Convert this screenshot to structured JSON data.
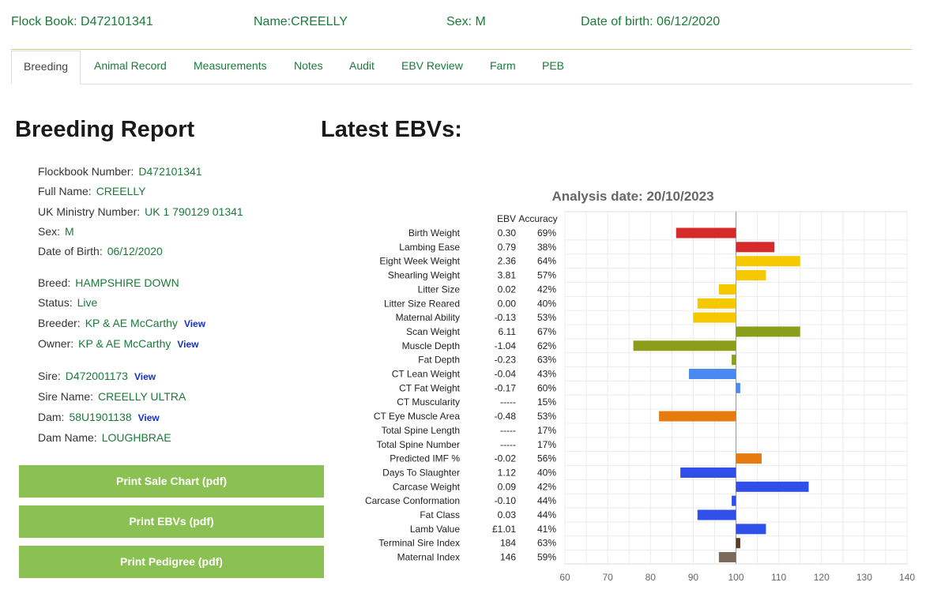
{
  "header": {
    "flock_book": "Flock Book: D472101341",
    "name": "Name:CREELLY",
    "sex": "Sex: M",
    "dob": "Date of birth: 06/12/2020"
  },
  "tabs": [
    {
      "label": "Breeding",
      "active": true
    },
    {
      "label": "Animal Record"
    },
    {
      "label": "Measurements"
    },
    {
      "label": "Notes"
    },
    {
      "label": "Audit"
    },
    {
      "label": "EBV Review"
    },
    {
      "label": "Farm"
    },
    {
      "label": "PEB"
    }
  ],
  "report": {
    "title": "Breeding Report",
    "flockbook_label": "Flockbook Number:",
    "flockbook": "D472101341",
    "fullname_label": "Full Name:",
    "fullname": "CREELLY",
    "ministry_label": "UK Ministry Number:",
    "ministry": "UK 1 790129 01341",
    "sex_label": "Sex:",
    "sex": "M",
    "dob_label": "Date of Birth:",
    "dob": "06/12/2020",
    "breed_label": "Breed:",
    "breed": "HAMPSHIRE DOWN",
    "status_label": "Status:",
    "status": "Live",
    "breeder_label": "Breeder:",
    "breeder": "KP & AE McCarthy",
    "owner_label": "Owner:",
    "owner": "KP & AE McCarthy",
    "sire_label": "Sire:",
    "sire": "D472001173",
    "sirename_label": "Sire Name:",
    "sirename": "CREELLY ULTRA",
    "dam_label": "Dam:",
    "dam": "58U1901138",
    "damname_label": "Dam Name:",
    "damname": "LOUGHBRAE",
    "view_label": "View"
  },
  "buttons": {
    "sale_chart": "Print Sale Chart (pdf)",
    "ebvs": "Print EBVs (pdf)",
    "pedigree": "Print Pedigree (pdf)"
  },
  "ebv_heading": "Latest EBVs:",
  "chart_data": {
    "type": "bar",
    "orientation": "horizontal",
    "title": "Analysis date: 20/10/2023",
    "column_headers": [
      "EBV",
      "Accuracy"
    ],
    "xlim": [
      60,
      140
    ],
    "xticks": [
      60,
      70,
      80,
      90,
      100,
      110,
      120,
      130,
      140
    ],
    "baseline": 100,
    "grid": true,
    "rows": [
      {
        "trait": "Birth Weight",
        "ebv": "0.30",
        "accuracy": "69%",
        "index": 86,
        "color": "#d42a2a"
      },
      {
        "trait": "Lambing Ease",
        "ebv": "0.79",
        "accuracy": "38%",
        "index": 109,
        "color": "#d42a2a"
      },
      {
        "trait": "Eight Week Weight",
        "ebv": "2.36",
        "accuracy": "64%",
        "index": 115,
        "color": "#f5c800"
      },
      {
        "trait": "Shearling Weight",
        "ebv": "3.81",
        "accuracy": "57%",
        "index": 107,
        "color": "#f5c800"
      },
      {
        "trait": "Litter Size",
        "ebv": "0.02",
        "accuracy": "42%",
        "index": 96,
        "color": "#f5c800"
      },
      {
        "trait": "Litter Size Reared",
        "ebv": "0.00",
        "accuracy": "40%",
        "index": 91,
        "color": "#f5c800"
      },
      {
        "trait": "Maternal Ability",
        "ebv": "-0.13",
        "accuracy": "53%",
        "index": 90,
        "color": "#f5c800"
      },
      {
        "trait": "Scan Weight",
        "ebv": "6.11",
        "accuracy": "67%",
        "index": 115,
        "color": "#8a9e1a"
      },
      {
        "trait": "Muscle Depth",
        "ebv": "-1.04",
        "accuracy": "62%",
        "index": 76,
        "color": "#8a9e1a"
      },
      {
        "trait": "Fat Depth",
        "ebv": "-0.23",
        "accuracy": "63%",
        "index": 99,
        "color": "#8a9e1a"
      },
      {
        "trait": "CT Lean Weight",
        "ebv": "-0.04",
        "accuracy": "43%",
        "index": 89,
        "color": "#4a8af0"
      },
      {
        "trait": "CT Fat Weight",
        "ebv": "-0.17",
        "accuracy": "60%",
        "index": 101,
        "color": "#4a8af0"
      },
      {
        "trait": "CT Muscularity",
        "ebv": "-----",
        "accuracy": "15%",
        "index": null,
        "color": "#4a8af0"
      },
      {
        "trait": "CT Eye Muscle Area",
        "ebv": "-0.48",
        "accuracy": "53%",
        "index": 82,
        "color": "#e87b10"
      },
      {
        "trait": "Total Spine Length",
        "ebv": "-----",
        "accuracy": "17%",
        "index": null,
        "color": "#e87b10"
      },
      {
        "trait": "Total Spine Number",
        "ebv": "-----",
        "accuracy": "17%",
        "index": null,
        "color": "#e87b10"
      },
      {
        "trait": "Predicted IMF %",
        "ebv": "-0.02",
        "accuracy": "56%",
        "index": 106,
        "color": "#e87b10"
      },
      {
        "trait": "Days To Slaughter",
        "ebv": "1.12",
        "accuracy": "40%",
        "index": 87,
        "color": "#2f4fe8"
      },
      {
        "trait": "Carcase Weight",
        "ebv": "0.09",
        "accuracy": "42%",
        "index": 117,
        "color": "#2f4fe8"
      },
      {
        "trait": "Carcase Conformation",
        "ebv": "-0.10",
        "accuracy": "44%",
        "index": 99,
        "color": "#2f4fe8"
      },
      {
        "trait": "Fat Class",
        "ebv": "0.03",
        "accuracy": "44%",
        "index": 91,
        "color": "#2f4fe8"
      },
      {
        "trait": "Lamb Value",
        "ebv": "£1.01",
        "accuracy": "41%",
        "index": 107,
        "color": "#2f4fe8"
      },
      {
        "trait": "Terminal Sire Index",
        "ebv": "184",
        "accuracy": "63%",
        "index": 101,
        "color": "#5a3a25"
      },
      {
        "trait": "Maternal Index",
        "ebv": "146",
        "accuracy": "59%",
        "index": 96,
        "color": "#7a6a5a"
      }
    ]
  }
}
